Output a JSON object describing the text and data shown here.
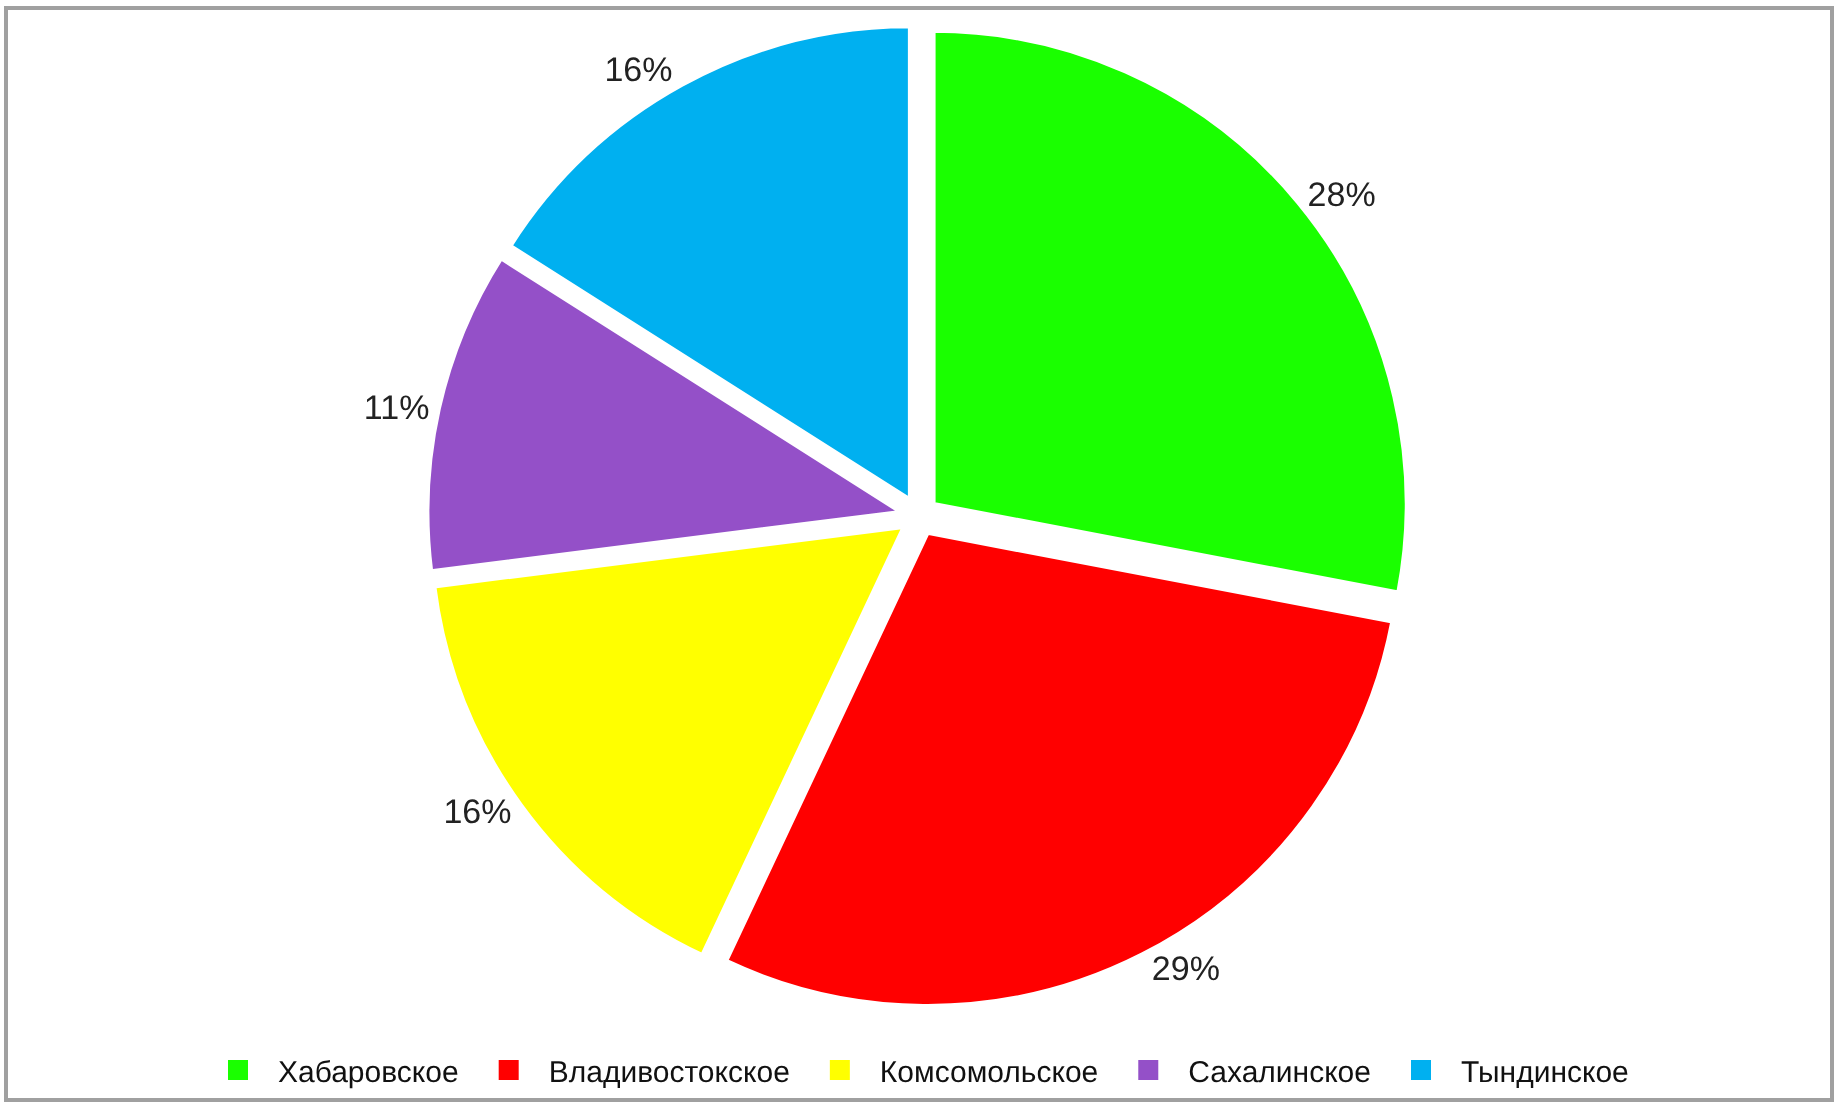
{
  "chart_data": {
    "type": "pie",
    "categories": [
      "Хабаровское",
      "Владивостокское",
      "Комсомольское",
      "Сахалинское",
      "Тындинское"
    ],
    "values": [
      28,
      29,
      16,
      11,
      16
    ],
    "value_labels": [
      "28%",
      "29%",
      "16%",
      "11%",
      "16%"
    ],
    "colors": [
      "#1aff00",
      "#ff0000",
      "#ffff00",
      "#9450c8",
      "#00b0f0"
    ],
    "legend": "bottom"
  }
}
